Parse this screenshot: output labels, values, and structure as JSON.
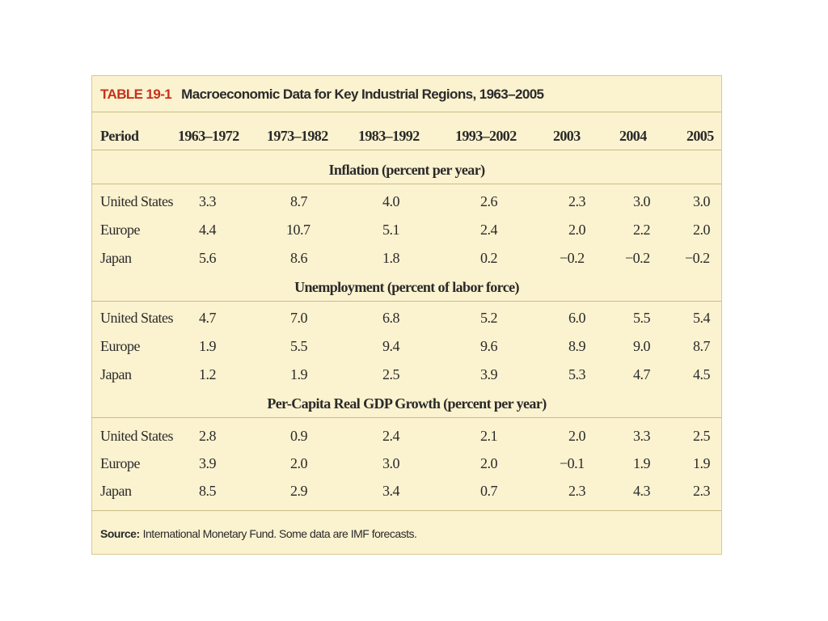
{
  "table": {
    "label": "TABLE 19-1",
    "title": "Macroeconomic Data for Key Industrial Regions, 1963–2005",
    "columns": [
      "Period",
      "1963–1972",
      "1973–1982",
      "1983–1992",
      "1993–2002",
      "2003",
      "2004",
      "2005"
    ],
    "sections": [
      {
        "heading": "Inflation (percent per year)",
        "rows": [
          {
            "region": "United States",
            "values": [
              "3.3",
              "8.7",
              "4.0",
              "2.6",
              "2.3",
              "3.0",
              "3.0"
            ]
          },
          {
            "region": "Europe",
            "values": [
              "4.4",
              "10.7",
              "5.1",
              "2.4",
              "2.0",
              "2.2",
              "2.0"
            ]
          },
          {
            "region": "Japan",
            "values": [
              "5.6",
              "8.6",
              "1.8",
              "0.2",
              "−0.2",
              "−0.2",
              "−0.2"
            ]
          }
        ]
      },
      {
        "heading": "Unemployment (percent of labor force)",
        "rows": [
          {
            "region": "United States",
            "values": [
              "4.7",
              "7.0",
              "6.8",
              "5.2",
              "6.0",
              "5.5",
              "5.4"
            ]
          },
          {
            "region": "Europe",
            "values": [
              "1.9",
              "5.5",
              "9.4",
              "9.6",
              "8.9",
              "9.0",
              "8.7"
            ]
          },
          {
            "region": "Japan",
            "values": [
              "1.2",
              "1.9",
              "2.5",
              "3.9",
              "5.3",
              "4.7",
              "4.5"
            ]
          }
        ]
      },
      {
        "heading": "Per-Capita Real GDP Growth (percent per year)",
        "rows": [
          {
            "region": "United States",
            "values": [
              "2.8",
              "0.9",
              "2.4",
              "2.1",
              "2.0",
              "3.3",
              "2.5"
            ]
          },
          {
            "region": "Europe",
            "values": [
              "3.9",
              "2.0",
              "3.0",
              "2.0",
              "−0.1",
              "1.9",
              "1.9"
            ]
          },
          {
            "region": "Japan",
            "values": [
              "8.5",
              "2.9",
              "3.4",
              "0.7",
              "2.3",
              "4.3",
              "2.3"
            ]
          }
        ]
      }
    ],
    "source_label": "Source:",
    "source_text": "International Monetary Fund. Some data are IMF forecasts."
  }
}
